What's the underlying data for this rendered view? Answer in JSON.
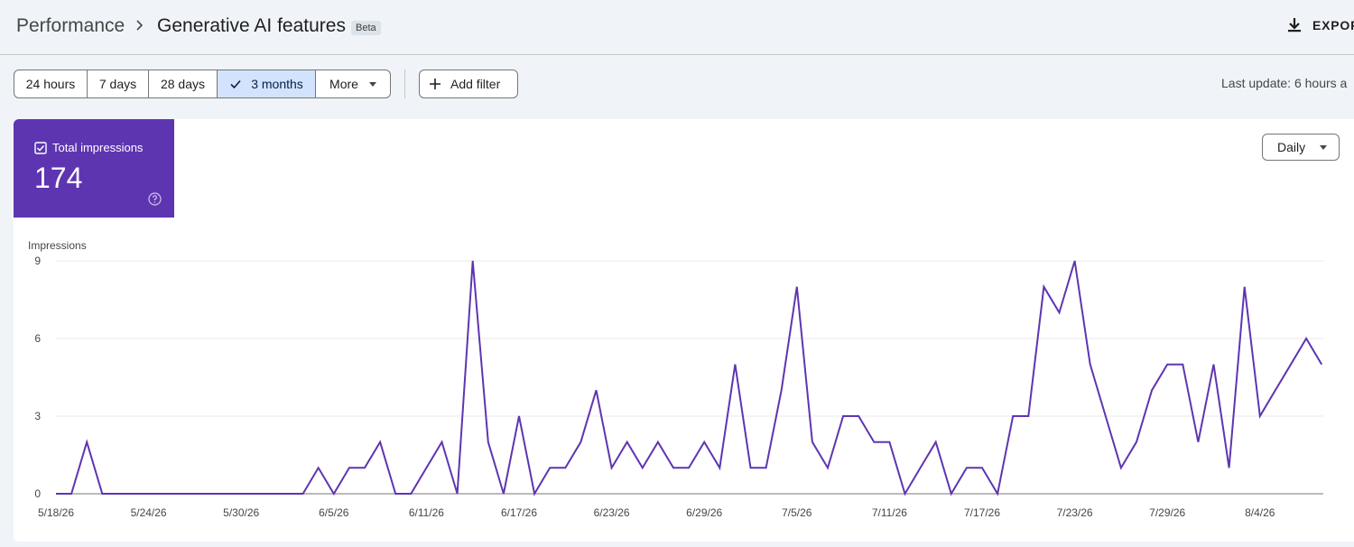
{
  "header": {
    "breadcrumb_root": "Performance",
    "title": "Generative AI features",
    "badge": "Beta",
    "export_label": "EXPOR",
    "icons": {
      "separator": "chevron-right-icon",
      "export": "download-icon"
    }
  },
  "toolbar": {
    "ranges": [
      {
        "label": "24 hours",
        "selected": false
      },
      {
        "label": "7 days",
        "selected": false
      },
      {
        "label": "28 days",
        "selected": false
      },
      {
        "label": "3 months",
        "selected": true
      },
      {
        "label": "More",
        "selected": false
      }
    ],
    "add_filter_label": "Add filter",
    "last_update": "Last update: 6 hours a"
  },
  "metric": {
    "label": "Total impressions",
    "value": "174",
    "checked": true,
    "color": "#5e35b1"
  },
  "granularity": {
    "label": "Daily"
  },
  "chart_data": {
    "type": "line",
    "ylabel": "Impressions",
    "ylim": [
      0,
      9
    ],
    "yticks": [
      0,
      3,
      6,
      9
    ],
    "xticks": [
      "5/18/26",
      "5/24/26",
      "5/30/26",
      "6/5/26",
      "6/11/26",
      "6/17/26",
      "6/23/26",
      "6/29/26",
      "7/5/26",
      "7/11/26",
      "7/17/26",
      "7/23/26",
      "7/29/26",
      "8/4/26"
    ],
    "grid": true,
    "series": [
      {
        "color": "#5e35b1",
        "x_start": "5/18/26",
        "values": [
          0,
          0,
          2,
          0,
          0,
          0,
          0,
          0,
          0,
          0,
          0,
          0,
          0,
          0,
          0,
          0,
          0,
          1,
          0,
          1,
          1,
          2,
          0,
          0,
          1,
          2,
          0,
          9,
          2,
          0,
          3,
          0,
          1,
          1,
          2,
          4,
          1,
          2,
          1,
          2,
          1,
          1,
          2,
          1,
          5,
          1,
          1,
          4,
          8,
          2,
          1,
          3,
          3,
          2,
          2,
          0,
          1,
          2,
          0,
          1,
          1,
          0,
          3,
          3,
          8,
          7,
          9,
          5,
          3,
          1,
          2,
          4,
          5,
          5,
          2,
          5,
          1,
          8,
          3,
          4,
          5,
          6,
          5
        ]
      }
    ]
  }
}
